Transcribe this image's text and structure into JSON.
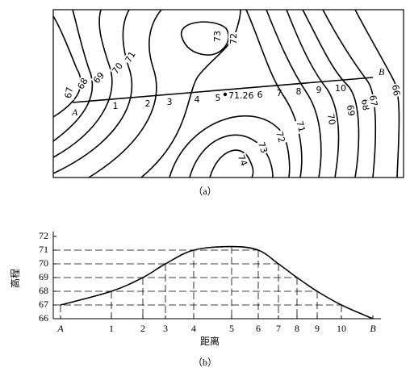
{
  "map": {
    "start": "A",
    "end": "B",
    "points": [
      "1",
      "2",
      "3",
      "4",
      "5",
      "6",
      "7",
      "8",
      "9",
      "10"
    ],
    "spot_height": "71.26",
    "contour_labels": [
      "67",
      "68",
      "69",
      "70",
      "71",
      "73",
      "72",
      "74",
      "73",
      "72",
      "71",
      "70",
      "69",
      "68",
      "67",
      "66"
    ],
    "caption": "（a）"
  },
  "profile": {
    "y_label": "高程",
    "x_label": "距离",
    "categories": [
      "A",
      "1",
      "2",
      "3",
      "4",
      "5",
      "6",
      "7",
      "8",
      "9",
      "10",
      "B"
    ],
    "values": [
      67,
      68,
      69,
      70,
      71,
      71.26,
      71,
      70,
      69,
      68,
      67,
      66
    ],
    "ylim": [
      66,
      72
    ],
    "yticks": [
      66,
      67,
      68,
      69,
      70,
      71,
      72
    ],
    "caption": "（b）"
  }
}
